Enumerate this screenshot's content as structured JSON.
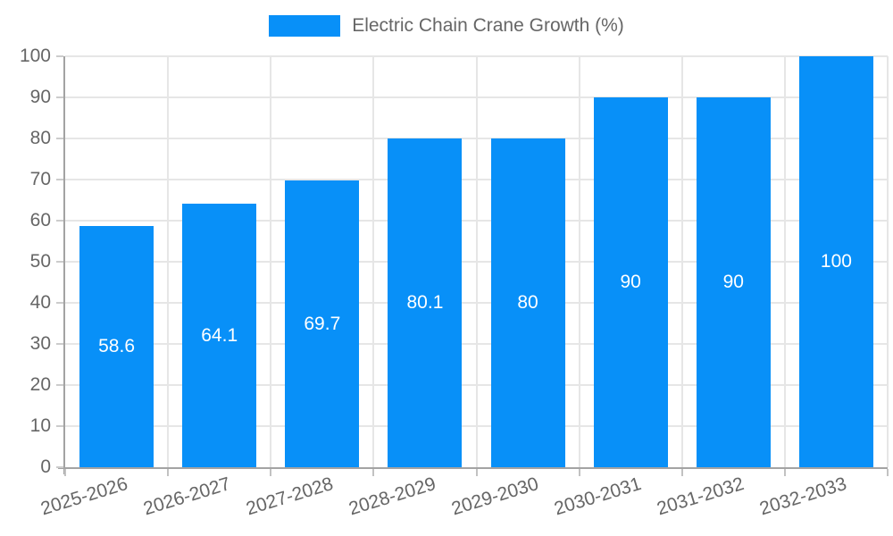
{
  "chart_data": {
    "type": "bar",
    "title": "Electric Chain Crane Growth (%)",
    "categories": [
      "2025-2026",
      "2026-2027",
      "2027-2028",
      "2028-2029",
      "2029-2030",
      "2030-2031",
      "2031-2032",
      "2032-2033"
    ],
    "values": [
      58.6,
      64.1,
      69.7,
      80.1,
      80,
      90,
      90,
      100
    ],
    "value_labels": [
      "58.6",
      "64.1",
      "69.7",
      "80.1",
      "80",
      "90",
      "90",
      "100"
    ],
    "xlabel": "",
    "ylabel": "",
    "ylim": [
      0,
      100
    ],
    "ytick_step": 10,
    "ytick_labels": [
      "0",
      "10",
      "20",
      "30",
      "40",
      "50",
      "60",
      "70",
      "80",
      "90",
      "100"
    ],
    "legend_position": "top",
    "grid": true,
    "bar_color": "#0890F8",
    "value_label_color": "#ffffff",
    "axis_text_color": "#666666",
    "gridline_color": "#e6e6e6",
    "axis_line_color": "#a3a3a3"
  }
}
